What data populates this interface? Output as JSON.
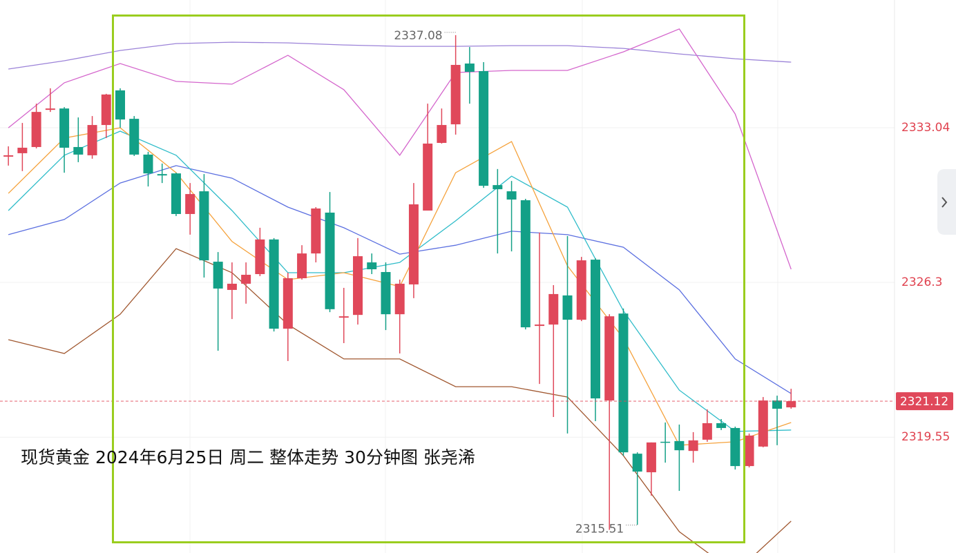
{
  "chart_data": {
    "type": "candlestick",
    "title": "现货黄金  2024年6月25日 周二 整体走势 30分钟图 张尧浠",
    "ylim": [
      2314.5,
      2338.61
    ],
    "xlim": [
      -0.6,
      63.4
    ],
    "yticks": [
      2319.55,
      2326.3,
      2333.04
    ],
    "grid": true,
    "up_color": "#e0485a",
    "down_color": "#13a087",
    "last": 2321.12,
    "max_label": 2337.08,
    "min_label": 2315.51,
    "open": [
      2331.78,
      2331.93,
      2332.2,
      2333.82,
      2333.88,
      2332.2,
      2331.84,
      2333.16,
      2334.67,
      2333.43,
      2331.87,
      2331.02,
      2331.05,
      2329.28,
      2330.27,
      2327.2,
      2325.97,
      2326.24,
      2326.66,
      2328.17,
      2324.28,
      2326.48,
      2327.56,
      2329.34,
      2324.76,
      2324.88,
      2327.17,
      2326.75,
      2324.91,
      2326.21,
      2329.43,
      2332.38,
      2333.19,
      2335.84,
      2335.51,
      2330.54,
      2330.27,
      2329.88,
      2324.4,
      2324.46,
      2325.73,
      2324.67,
      2327.29,
      2321.15,
      2324.94,
      2318.83,
      2318.02,
      2319.35,
      2319.38,
      2318.95,
      2319.44,
      2320.16,
      2319.95,
      2318.29,
      2319.14,
      2321.15,
      2320.85
    ],
    "high": [
      2332.23,
      2333.25,
      2334.09,
      2334.76,
      2333.94,
      2333.49,
      2333.55,
      2334.52,
      2334.76,
      2333.55,
      2331.99,
      2331.48,
      2331.08,
      2330.63,
      2331.02,
      2327.62,
      2327.17,
      2327.17,
      2328.68,
      2328.23,
      2326.72,
      2327.92,
      2329.58,
      2330.24,
      2326.06,
      2328.23,
      2327.56,
      2327.17,
      2326.42,
      2330.63,
      2334.09,
      2333.88,
      2337.08,
      2336.56,
      2335.9,
      2331.24,
      2330.72,
      2329.94,
      2328.47,
      2326.18,
      2328.32,
      2327.41,
      2327.35,
      2324.91,
      2325.16,
      2318.89,
      2319.32,
      2320.19,
      2320.1,
      2319.77,
      2320.76,
      2320.34,
      2320.01,
      2319.71,
      2321.3,
      2321.36,
      2321.66
    ],
    "low": [
      2331.39,
      2331.15,
      2332.14,
      2333.73,
      2331.08,
      2331.54,
      2331.69,
      2332.59,
      2333.04,
      2331.81,
      2330.48,
      2330.63,
      2329.19,
      2328.38,
      2326.51,
      2323.32,
      2324.7,
      2325.37,
      2326.57,
      2324.16,
      2322.87,
      2326.42,
      2327.17,
      2325.0,
      2323.65,
      2324.46,
      2326.66,
      2324.22,
      2323.2,
      2325.61,
      2329.43,
      2332.35,
      2332.74,
      2334.09,
      2330.42,
      2327.56,
      2327.65,
      2324.25,
      2321.87,
      2320.43,
      2319.71,
      2324.61,
      2320.25,
      2315.51,
      2318.74,
      2315.73,
      2317.0,
      2318.44,
      2317.21,
      2318.44,
      2319.35,
      2319.86,
      2318.14,
      2318.23,
      2319.11,
      2319.2,
      2320.79
    ],
    "close": [
      2331.84,
      2332.17,
      2333.73,
      2333.88,
      2332.17,
      2331.87,
      2333.16,
      2334.49,
      2333.4,
      2331.87,
      2331.05,
      2330.96,
      2329.28,
      2330.15,
      2327.26,
      2326.03,
      2326.24,
      2326.63,
      2328.17,
      2324.28,
      2326.48,
      2327.56,
      2329.52,
      2325.13,
      2324.82,
      2327.44,
      2326.87,
      2324.91,
      2326.24,
      2329.7,
      2332.35,
      2333.16,
      2335.78,
      2335.48,
      2330.51,
      2330.36,
      2329.91,
      2324.34,
      2324.46,
      2325.79,
      2324.67,
      2327.26,
      2321.24,
      2324.82,
      2318.89,
      2318.05,
      2319.32,
      2319.32,
      2318.98,
      2319.41,
      2320.16,
      2319.95,
      2318.29,
      2319.62,
      2321.15,
      2320.79,
      2321.12
    ],
    "series": [
      {
        "color": "#9b82d8",
        "x": [
          0,
          4,
          8,
          12,
          16,
          20,
          24,
          28,
          32,
          36,
          40,
          44,
          48,
          52,
          56
        ],
        "values": [
          2335.6,
          2335.96,
          2336.41,
          2336.71,
          2336.77,
          2336.74,
          2336.65,
          2336.59,
          2336.59,
          2336.62,
          2336.62,
          2336.5,
          2336.26,
          2336.05,
          2335.9
        ]
      },
      {
        "color": "#d465cc",
        "x": [
          0,
          4,
          8,
          12,
          16,
          20,
          24,
          28,
          32,
          36,
          40,
          44,
          48,
          52,
          56
        ],
        "values": [
          2333.04,
          2335.0,
          2335.84,
          2335.06,
          2334.94,
          2336.2,
          2334.7,
          2331.84,
          2335.45,
          2335.54,
          2335.54,
          2336.35,
          2337.35,
          2333.64,
          2326.87
        ]
      },
      {
        "color": "#a0572f",
        "x": [
          0,
          4,
          8,
          12,
          16,
          20,
          24,
          28,
          32,
          36,
          40,
          44,
          48,
          52,
          56
        ],
        "values": [
          2323.8,
          2323.2,
          2324.91,
          2327.77,
          2326.72,
          2324.46,
          2322.96,
          2322.96,
          2321.75,
          2321.75,
          2321.3,
          2318.74,
          2315.43,
          2313.63,
          2315.89
        ]
      },
      {
        "color": "#5b6fe0",
        "x": [
          0,
          4,
          8,
          12,
          16,
          20,
          24,
          28,
          32,
          36,
          40,
          44,
          48,
          52,
          56
        ],
        "values": [
          2328.38,
          2329.04,
          2330.63,
          2331.39,
          2330.84,
          2329.58,
          2328.68,
          2327.53,
          2327.92,
          2328.53,
          2328.38,
          2327.83,
          2325.97,
          2322.96,
          2321.45
        ]
      },
      {
        "color": "#2fbcc9",
        "x": [
          0,
          4,
          8,
          12,
          16,
          20,
          24,
          28,
          32,
          36,
          40,
          44,
          48,
          52,
          56
        ],
        "values": [
          2329.43,
          2331.84,
          2332.89,
          2331.84,
          2329.43,
          2326.72,
          2326.72,
          2327.17,
          2328.98,
          2330.93,
          2329.58,
          2325.06,
          2321.6,
          2319.8,
          2319.86
        ]
      },
      {
        "color": "#f5a23c",
        "x": [
          0,
          4,
          8,
          12,
          16,
          20,
          24,
          28,
          32,
          36,
          40,
          44,
          48,
          52,
          56
        ],
        "values": [
          2330.18,
          2332.59,
          2333.04,
          2331.08,
          2328.08,
          2326.42,
          2326.72,
          2326.12,
          2331.08,
          2332.44,
          2327.02,
          2323.86,
          2319.2,
          2319.35,
          2320.19
        ]
      }
    ]
  }
}
